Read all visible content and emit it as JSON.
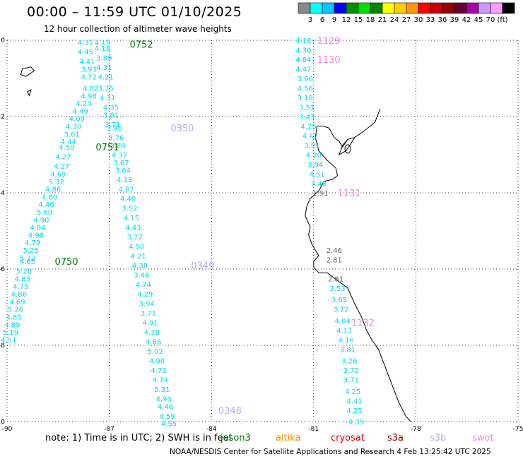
{
  "title": "00:00 – 11:59 UTC 01/10/2025",
  "subtitle": "12 hour collection of altimeter wave heights",
  "colorbar": {
    "colors": [
      "#888888",
      "#00ffff",
      "#00c8ff",
      "#0000ff",
      "#009000",
      "#00e000",
      "#008800",
      "#ffff00",
      "#ffcc00",
      "#ff9900",
      "#ff0000",
      "#cc0000",
      "#990000",
      "#660033",
      "#aa00aa",
      "#cc99ff",
      "#ff99ff",
      "#000000"
    ],
    "labels": [
      "3",
      "6",
      "9",
      "12",
      "15",
      "18",
      "21",
      "24",
      "27",
      "30",
      "33",
      "36",
      "39",
      "42",
      "45",
      "70",
      "(ft)"
    ]
  },
  "note": "note:  1) Time is in UTC;  2) SWH is in feet",
  "satellites": [
    {
      "name": "jason3",
      "color": "#007700"
    },
    {
      "name": "altika",
      "color": "#ff8c00"
    },
    {
      "name": "cryosat",
      "color": "#dd0000"
    },
    {
      "name": "s3a",
      "color": "#990000"
    },
    {
      "name": "s3b",
      "color": "#bba8ee"
    },
    {
      "name": "swot",
      "color": "#ee88dd"
    }
  ],
  "credit": "NOAA/NESDIS Center for Satellite Applications and Research     4 Feb 13:25:42 UTC 2025",
  "chart_data": {
    "type": "scatter",
    "xlim": [
      -90,
      -75
    ],
    "ylim": [
      -10,
      0
    ],
    "xticks": [
      -90,
      -87,
      -84,
      -81,
      -78,
      -75
    ],
    "yticks": [
      0,
      -2,
      -4,
      -6,
      -8,
      -10
    ],
    "grid": true,
    "tracks": [
      {
        "sat": "jason3",
        "labels": [
          {
            "text": "0752",
            "lon": -86.4,
            "lat": -0.1
          },
          {
            "text": "0751",
            "lon": -87.4,
            "lat": -2.8
          },
          {
            "text": "0750",
            "lon": -88.6,
            "lat": -5.8
          }
        ],
        "points": [
          {
            "lon": -87.7,
            "lat": -0.05,
            "v": "4.31"
          },
          {
            "lon": -87.7,
            "lat": -0.3,
            "v": "4.45"
          },
          {
            "lon": -87.65,
            "lat": -0.55,
            "v": "4.41"
          },
          {
            "lon": -87.6,
            "lat": -0.75,
            "v": "3.93"
          },
          {
            "lon": -87.6,
            "lat": -0.95,
            "v": "4.72"
          },
          {
            "lon": -87.55,
            "lat": -1.25,
            "v": "4.82"
          },
          {
            "lon": -87.6,
            "lat": -1.45,
            "v": "4.98"
          },
          {
            "lon": -87.75,
            "lat": -1.65,
            "v": "4.24"
          },
          {
            "lon": -87.85,
            "lat": -1.85,
            "v": "4.49"
          },
          {
            "lon": -87.95,
            "lat": -2.05,
            "v": "4.09"
          },
          {
            "lon": -88.05,
            "lat": -2.25,
            "v": "4.30"
          },
          {
            "lon": -88.1,
            "lat": -2.45,
            "v": "3.61"
          },
          {
            "lon": -88.2,
            "lat": -2.65,
            "v": "4.44"
          },
          {
            "lon": -88.25,
            "lat": -2.8,
            "v": "4.50"
          },
          {
            "lon": -88.35,
            "lat": -3.05,
            "v": "4.27"
          },
          {
            "lon": -88.4,
            "lat": -3.3,
            "v": "4.27"
          },
          {
            "lon": -88.5,
            "lat": -3.5,
            "v": "4.69"
          },
          {
            "lon": -88.55,
            "lat": -3.7,
            "v": "5.32"
          },
          {
            "lon": -88.65,
            "lat": -3.9,
            "v": "4.86"
          },
          {
            "lon": -88.75,
            "lat": -4.1,
            "v": "4.80"
          },
          {
            "lon": -88.85,
            "lat": -4.3,
            "v": "4.46"
          },
          {
            "lon": -88.9,
            "lat": -4.5,
            "v": "5.60"
          },
          {
            "lon": -89.0,
            "lat": -4.7,
            "v": "4.90"
          },
          {
            "lon": -89.1,
            "lat": -4.9,
            "v": "4.84"
          },
          {
            "lon": -89.15,
            "lat": -5.1,
            "v": "4.98"
          },
          {
            "lon": -89.25,
            "lat": -5.3,
            "v": "4.79"
          },
          {
            "lon": -89.3,
            "lat": -5.5,
            "v": "5.25"
          },
          {
            "lon": -89.4,
            "lat": -5.7,
            "v": "5.33"
          },
          {
            "lon": -89.4,
            "lat": -5.8,
            "v": "4.65"
          },
          {
            "lon": -89.5,
            "lat": -6.05,
            "v": "5.28"
          },
          {
            "lon": -89.55,
            "lat": -6.25,
            "v": "4.83"
          },
          {
            "lon": -89.6,
            "lat": -6.45,
            "v": "4.75"
          },
          {
            "lon": -89.65,
            "lat": -6.65,
            "v": "4.86"
          },
          {
            "lon": -89.7,
            "lat": -6.85,
            "v": "4.69"
          },
          {
            "lon": -89.75,
            "lat": -7.05,
            "v": "5.26"
          },
          {
            "lon": -89.8,
            "lat": -7.25,
            "v": "4.85"
          },
          {
            "lon": -89.85,
            "lat": -7.45,
            "v": "4.89"
          },
          {
            "lon": -89.9,
            "lat": -7.65,
            "v": "5.19"
          },
          {
            "lon": -89.95,
            "lat": -7.85,
            "v": "4.51"
          }
        ]
      },
      {
        "sat": "s3b",
        "labels": [
          {
            "text": "0350",
            "lon": -85.2,
            "lat": -2.3
          },
          {
            "text": "0349",
            "lon": -84.6,
            "lat": -5.9
          },
          {
            "text": "0348",
            "lon": -83.8,
            "lat": -9.7
          }
        ],
        "points": [
          {
            "lon": -87.2,
            "lat": -0.05,
            "v": "4.18"
          },
          {
            "lon": -87.2,
            "lat": -0.2,
            "v": "4.18"
          },
          {
            "lon": -87.15,
            "lat": -0.45,
            "v": "3.89"
          },
          {
            "lon": -87.15,
            "lat": -0.7,
            "v": "4.31"
          },
          {
            "lon": -87.1,
            "lat": -0.95,
            "v": "4.21"
          },
          {
            "lon": -87.1,
            "lat": -1.25,
            "v": "3.75"
          },
          {
            "lon": -87.05,
            "lat": -1.5,
            "v": "4.31"
          },
          {
            "lon": -86.95,
            "lat": -1.75,
            "v": "4.35"
          },
          {
            "lon": -86.95,
            "lat": -1.95,
            "v": "3.81"
          },
          {
            "lon": -86.9,
            "lat": -2.2,
            "v": "3.71"
          },
          {
            "lon": -86.85,
            "lat": -2.3,
            "v": "3.98"
          },
          {
            "lon": -86.8,
            "lat": -2.55,
            "v": "3.76"
          },
          {
            "lon": -86.75,
            "lat": -2.75,
            "v": "3.88"
          },
          {
            "lon": -86.7,
            "lat": -3.0,
            "v": "4.37"
          },
          {
            "lon": -86.65,
            "lat": -3.2,
            "v": "3.67"
          },
          {
            "lon": -86.6,
            "lat": -3.4,
            "v": "3.64"
          },
          {
            "lon": -86.55,
            "lat": -3.65,
            "v": "4.18"
          },
          {
            "lon": -86.5,
            "lat": -3.9,
            "v": "4.07"
          },
          {
            "lon": -86.45,
            "lat": -4.15,
            "v": "4.40"
          },
          {
            "lon": -86.4,
            "lat": -4.4,
            "v": "3.52"
          },
          {
            "lon": -86.35,
            "lat": -4.65,
            "v": "4.15"
          },
          {
            "lon": -86.3,
            "lat": -4.9,
            "v": "4.43"
          },
          {
            "lon": -86.25,
            "lat": -5.15,
            "v": "3.72"
          },
          {
            "lon": -86.2,
            "lat": -5.4,
            "v": "4.50"
          },
          {
            "lon": -86.15,
            "lat": -5.65,
            "v": "4.21"
          },
          {
            "lon": -86.1,
            "lat": -5.9,
            "v": "4.38"
          },
          {
            "lon": -86.05,
            "lat": -6.15,
            "v": "3.46"
          },
          {
            "lon": -86.0,
            "lat": -6.4,
            "v": "4.74"
          },
          {
            "lon": -85.95,
            "lat": -6.65,
            "v": "4.29"
          },
          {
            "lon": -85.9,
            "lat": -6.9,
            "v": "3.94"
          },
          {
            "lon": -85.85,
            "lat": -7.15,
            "v": "3.71"
          },
          {
            "lon": -85.8,
            "lat": -7.4,
            "v": "4.91"
          },
          {
            "lon": -85.75,
            "lat": -7.65,
            "v": "4.38"
          },
          {
            "lon": -85.7,
            "lat": -7.9,
            "v": "4.86"
          },
          {
            "lon": -85.65,
            "lat": -8.15,
            "v": "5.02"
          },
          {
            "lon": -85.6,
            "lat": -8.4,
            "v": "4.90"
          },
          {
            "lon": -85.55,
            "lat": -8.65,
            "v": "4.73"
          },
          {
            "lon": -85.5,
            "lat": -8.9,
            "v": "4.74"
          },
          {
            "lon": -85.45,
            "lat": -9.15,
            "v": "5.31"
          },
          {
            "lon": -85.4,
            "lat": -9.4,
            "v": "4.93"
          },
          {
            "lon": -85.35,
            "lat": -9.6,
            "v": "4.46"
          },
          {
            "lon": -85.3,
            "lat": -9.85,
            "v": "4.59"
          },
          {
            "lon": -85.25,
            "lat": -10.05,
            "v": "4.55"
          }
        ]
      },
      {
        "sat": "swot",
        "labels": [
          {
            "text": "1129",
            "lon": -80.9,
            "lat": 0.0
          },
          {
            "text": "1130",
            "lon": -80.9,
            "lat": -0.5
          },
          {
            "text": "1131",
            "lon": -80.3,
            "lat": -4.0
          },
          {
            "text": "1132",
            "lon": -79.9,
            "lat": -7.4
          }
        ],
        "points": [
          {
            "lon": -81.3,
            "lat": 0.0,
            "v": "4.18"
          },
          {
            "lon": -81.3,
            "lat": -0.25,
            "v": "4.30"
          },
          {
            "lon": -81.3,
            "lat": -0.5,
            "v": "4.84"
          },
          {
            "lon": -81.3,
            "lat": -0.75,
            "v": "4.47"
          },
          {
            "lon": -81.25,
            "lat": -1.0,
            "v": "3.96"
          },
          {
            "lon": -81.25,
            "lat": -1.25,
            "v": "4.56"
          },
          {
            "lon": -81.25,
            "lat": -1.5,
            "v": "3.18"
          },
          {
            "lon": -81.2,
            "lat": -1.75,
            "v": "3.51"
          },
          {
            "lon": -81.2,
            "lat": -2.0,
            "v": "3.43"
          },
          {
            "lon": -81.15,
            "lat": -2.25,
            "v": "4.25"
          },
          {
            "lon": -81.1,
            "lat": -2.5,
            "v": "4.42"
          },
          {
            "lon": -81.05,
            "lat": -2.75,
            "v": "3.91"
          },
          {
            "lon": -81.0,
            "lat": -3.0,
            "v": "4.30"
          },
          {
            "lon": -80.95,
            "lat": -3.25,
            "v": "3.94"
          },
          {
            "lon": -80.9,
            "lat": -3.5,
            "v": "4.51"
          },
          {
            "lon": -80.85,
            "lat": -3.75,
            "v": "3.48"
          },
          {
            "lon": -80.8,
            "lat": -4.0,
            "v": "1.91"
          },
          {
            "lon": -80.4,
            "lat": -5.5,
            "v": "2.46"
          },
          {
            "lon": -80.4,
            "lat": -5.75,
            "v": "2.81"
          },
          {
            "lon": -80.35,
            "lat": -6.25,
            "v": "2.81"
          },
          {
            "lon": -80.3,
            "lat": -6.5,
            "v": "3.53"
          },
          {
            "lon": -80.25,
            "lat": -6.8,
            "v": "3.65"
          },
          {
            "lon": -80.2,
            "lat": -7.05,
            "v": "3.72"
          },
          {
            "lon": -80.15,
            "lat": -7.35,
            "v": "4.04"
          },
          {
            "lon": -80.1,
            "lat": -7.6,
            "v": "4.11"
          },
          {
            "lon": -80.05,
            "lat": -7.85,
            "v": "4.16"
          },
          {
            "lon": -80.0,
            "lat": -8.1,
            "v": "3.81"
          },
          {
            "lon": -79.95,
            "lat": -8.4,
            "v": "3.26"
          },
          {
            "lon": -79.9,
            "lat": -8.65,
            "v": "3.72"
          },
          {
            "lon": -79.9,
            "lat": -8.9,
            "v": "3.71"
          },
          {
            "lon": -79.85,
            "lat": -9.2,
            "v": "4.25"
          },
          {
            "lon": -79.8,
            "lat": -9.45,
            "v": "4.41"
          },
          {
            "lon": -79.8,
            "lat": -9.7,
            "v": "4.25"
          },
          {
            "lon": -79.75,
            "lat": -10.0,
            "v": "4.35"
          }
        ]
      }
    ]
  }
}
